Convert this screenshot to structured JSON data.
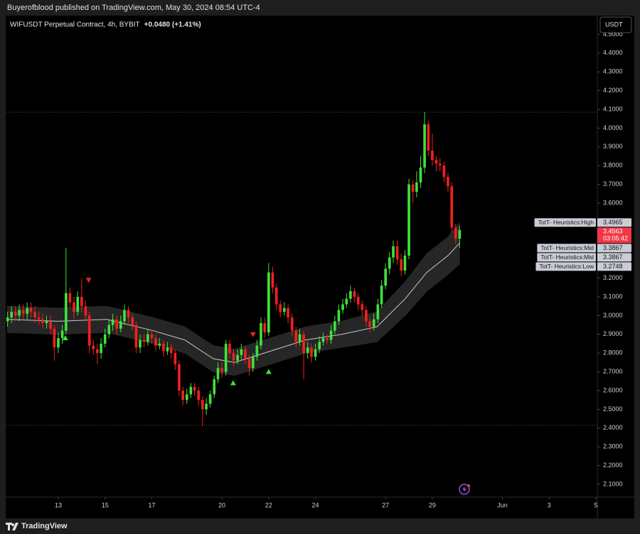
{
  "chart_data": {
    "type": "candlestick",
    "subtitle": "Buyerofblood published on TradingView.com, May 30, 2024 08:54 UTC-4",
    "title": "WIFUSDT Perpetual Contract, 4h, BYBIT",
    "change_label": "+0.0480 (+1.41%)",
    "currency": "USDT",
    "countdown": "03:05:42",
    "brand": "TradingView",
    "up_color": "#3fe23a",
    "down_color": "#f21f1f",
    "grid": false,
    "xlim": [
      10.75,
      36.06
    ],
    "ylim": [
      2.032,
      4.6
    ],
    "xticks": [
      13,
      15,
      17,
      20,
      22,
      24,
      27,
      29,
      {
        "value": 32,
        "label": "Jun"
      },
      {
        "value": 34,
        "label": "3"
      },
      {
        "value": 36,
        "label": "5"
      }
    ],
    "yticks": [
      {
        "value": 2.1,
        "label": "2.1000"
      },
      {
        "value": 2.2,
        "label": "2.2000"
      },
      {
        "value": 2.3,
        "label": "2.3000"
      },
      {
        "value": 2.4,
        "label": "2.4000"
      },
      {
        "value": 2.5,
        "label": "2.5000"
      },
      {
        "value": 2.6,
        "label": "2.6000"
      },
      {
        "value": 2.7,
        "label": "2.7000"
      },
      {
        "value": 2.8,
        "label": "2.8000"
      },
      {
        "value": 2.9,
        "label": "2.9000"
      },
      {
        "value": 3.0,
        "label": "3.0000"
      },
      {
        "value": 3.1,
        "label": "3.1000"
      },
      {
        "value": 3.2,
        "label": "3.2000"
      },
      {
        "value": 3.3,
        "label": "3.3000"
      },
      {
        "value": 3.4,
        "label": "3.4000"
      },
      {
        "value": 3.5,
        "label": "3.5000"
      },
      {
        "value": 3.6,
        "label": "3.6000"
      },
      {
        "value": 3.7,
        "label": "3.7000"
      },
      {
        "value": 3.8,
        "label": "3.8000"
      },
      {
        "value": 3.9,
        "label": "3.9000"
      },
      {
        "value": 4.0,
        "label": "4.0000"
      },
      {
        "value": 4.1,
        "label": "4.1000"
      },
      {
        "value": 4.2,
        "label": "4.2000"
      },
      {
        "value": 4.3,
        "label": "4.3000"
      },
      {
        "value": 4.4,
        "label": "4.4000"
      },
      {
        "value": 4.5,
        "label": "4.5000"
      }
    ],
    "x": [
      10.83,
      11,
      11.17,
      11.33,
      11.5,
      11.67,
      11.83,
      12,
      12.17,
      12.33,
      12.5,
      12.67,
      12.83,
      13,
      13.17,
      13.33,
      13.5,
      13.67,
      13.83,
      14,
      14.17,
      14.33,
      14.5,
      14.67,
      14.83,
      15,
      15.17,
      15.33,
      15.5,
      15.67,
      15.83,
      16,
      16.17,
      16.33,
      16.5,
      16.67,
      16.83,
      17,
      17.17,
      17.33,
      17.5,
      17.67,
      17.83,
      18,
      18.17,
      18.33,
      18.5,
      18.67,
      18.83,
      19,
      19.17,
      19.33,
      19.5,
      19.67,
      19.83,
      20,
      20.17,
      20.33,
      20.5,
      20.67,
      20.83,
      21,
      21.17,
      21.33,
      21.5,
      21.67,
      21.83,
      22,
      22.17,
      22.33,
      22.5,
      22.67,
      22.83,
      23,
      23.17,
      23.33,
      23.5,
      23.67,
      23.83,
      24,
      24.17,
      24.33,
      24.5,
      24.67,
      24.83,
      25,
      25.17,
      25.33,
      25.5,
      25.67,
      25.83,
      26,
      26.17,
      26.33,
      26.5,
      26.67,
      26.83,
      27,
      27.17,
      27.33,
      27.5,
      27.67,
      27.83,
      28,
      28.17,
      28.33,
      28.5,
      28.67,
      28.83,
      29,
      29.17,
      29.33,
      29.5,
      29.67,
      29.83,
      30,
      30.17
    ],
    "open": [
      2.97,
      2.99,
      3.02,
      3.0,
      3.03,
      3.01,
      3.04,
      3.02,
      2.99,
      2.98,
      2.96,
      2.97,
      2.93,
      2.83,
      2.88,
      2.92,
      3.12,
      3.07,
      3.02,
      3.1,
      3.05,
      3.0,
      2.84,
      2.82,
      2.8,
      2.85,
      2.9,
      2.95,
      2.98,
      2.93,
      2.97,
      3.03,
      2.99,
      2.95,
      2.83,
      2.87,
      2.86,
      2.9,
      2.88,
      2.84,
      2.85,
      2.81,
      2.83,
      2.8,
      2.74,
      2.6,
      2.55,
      2.58,
      2.62,
      2.6,
      2.55,
      2.5,
      2.53,
      2.58,
      2.66,
      2.72,
      2.7,
      2.85,
      2.8,
      2.76,
      2.79,
      2.82,
      2.77,
      2.72,
      2.78,
      2.84,
      2.96,
      2.91,
      3.23,
      3.15,
      3.06,
      3.02,
      3.04,
      2.99,
      2.92,
      2.86,
      2.9,
      2.8,
      2.83,
      2.78,
      2.82,
      2.86,
      2.88,
      2.87,
      2.92,
      2.97,
      3.03,
      3.06,
      3.09,
      3.13,
      3.1,
      3.06,
      3.03,
      2.97,
      2.94,
      2.98,
      3.06,
      3.16,
      3.25,
      3.31,
      3.37,
      3.3,
      3.24,
      3.32,
      3.7,
      3.66,
      3.71,
      3.79,
      4.02,
      3.88,
      3.83,
      3.81,
      3.8,
      3.74,
      3.69,
      3.47,
      3.41
    ],
    "high": [
      3.02,
      3.05,
      3.05,
      3.06,
      3.06,
      3.07,
      3.07,
      3.05,
      3.02,
      3.01,
      3.0,
      3.0,
      2.95,
      2.91,
      2.95,
      3.36,
      3.15,
      3.1,
      3.13,
      3.2,
      3.08,
      3.02,
      2.87,
      2.85,
      2.88,
      2.93,
      2.98,
      3.01,
      3.0,
      3.0,
      3.06,
      3.05,
      3.01,
      2.97,
      2.9,
      2.9,
      2.93,
      2.92,
      2.9,
      2.88,
      2.87,
      2.86,
      2.85,
      2.82,
      2.76,
      2.62,
      2.61,
      2.64,
      2.64,
      2.62,
      2.57,
      2.56,
      2.6,
      2.68,
      2.75,
      2.75,
      2.87,
      2.87,
      2.82,
      2.82,
      2.85,
      2.84,
      2.79,
      2.8,
      2.87,
      2.99,
      2.99,
      3.28,
      3.26,
      3.17,
      3.08,
      3.07,
      3.06,
      3.01,
      2.94,
      2.93,
      2.92,
      2.86,
      2.85,
      2.85,
      2.89,
      2.91,
      2.9,
      2.95,
      3.0,
      3.06,
      3.09,
      3.12,
      3.16,
      3.15,
      3.12,
      3.08,
      3.05,
      2.99,
      3.01,
      3.09,
      3.19,
      3.28,
      3.34,
      3.4,
      3.4,
      3.33,
      3.35,
      3.73,
      3.72,
      3.77,
      3.85,
      4.085,
      4.04,
      3.97,
      3.85,
      3.84,
      3.82,
      3.76,
      3.71,
      3.49,
      3.48
    ],
    "low": [
      2.94,
      2.96,
      2.97,
      2.97,
      2.98,
      2.98,
      2.99,
      2.96,
      2.95,
      2.93,
      2.93,
      2.9,
      2.76,
      2.8,
      2.85,
      2.9,
      3.04,
      2.98,
      3.0,
      3.02,
      2.97,
      2.8,
      2.79,
      2.74,
      2.77,
      2.83,
      2.88,
      2.92,
      2.9,
      2.91,
      2.95,
      2.96,
      2.92,
      2.8,
      2.8,
      2.83,
      2.84,
      2.85,
      2.81,
      2.82,
      2.78,
      2.79,
      2.77,
      2.71,
      2.57,
      2.52,
      2.53,
      2.56,
      2.57,
      2.52,
      2.41,
      2.47,
      2.51,
      2.56,
      2.64,
      2.67,
      2.68,
      2.77,
      2.73,
      2.74,
      2.76,
      2.74,
      2.68,
      2.7,
      2.76,
      2.82,
      2.88,
      2.89,
      3.12,
      3.03,
      2.99,
      3.0,
      2.96,
      2.89,
      2.83,
      2.84,
      2.66,
      2.77,
      2.75,
      2.76,
      2.8,
      2.84,
      2.85,
      2.85,
      2.9,
      2.95,
      3.01,
      3.04,
      3.07,
      3.07,
      3.03,
      3.0,
      2.94,
      2.91,
      2.92,
      2.96,
      3.04,
      3.14,
      3.22,
      3.28,
      3.27,
      3.21,
      3.22,
      3.3,
      3.6,
      3.63,
      3.68,
      3.76,
      3.85,
      3.8,
      3.77,
      3.77,
      3.71,
      3.66,
      3.44,
      3.38,
      3.36
    ],
    "close": [
      2.99,
      3.02,
      3.0,
      3.03,
      3.01,
      3.04,
      3.02,
      2.99,
      2.98,
      2.96,
      2.97,
      2.93,
      2.83,
      2.88,
      2.92,
      3.12,
      3.07,
      3.02,
      3.1,
      3.05,
      3.0,
      2.84,
      2.82,
      2.8,
      2.85,
      2.9,
      2.95,
      2.98,
      2.93,
      2.97,
      3.03,
      2.99,
      2.95,
      2.83,
      2.87,
      2.86,
      2.9,
      2.88,
      2.84,
      2.85,
      2.81,
      2.83,
      2.8,
      2.74,
      2.6,
      2.55,
      2.58,
      2.62,
      2.6,
      2.55,
      2.5,
      2.53,
      2.58,
      2.66,
      2.72,
      2.7,
      2.85,
      2.8,
      2.76,
      2.79,
      2.82,
      2.77,
      2.72,
      2.78,
      2.84,
      2.96,
      2.91,
      3.23,
      3.15,
      3.06,
      3.02,
      3.04,
      2.99,
      2.92,
      2.86,
      2.9,
      2.8,
      2.83,
      2.78,
      2.82,
      2.86,
      2.88,
      2.87,
      2.92,
      2.97,
      3.03,
      3.06,
      3.09,
      3.13,
      3.1,
      3.06,
      3.03,
      2.97,
      2.94,
      2.98,
      3.06,
      3.16,
      3.25,
      3.31,
      3.37,
      3.3,
      3.24,
      3.32,
      3.7,
      3.66,
      3.71,
      3.79,
      4.02,
      3.88,
      3.83,
      3.81,
      3.8,
      3.74,
      3.69,
      3.47,
      3.41,
      3.4563
    ],
    "band": {
      "x": [
        10.81,
        13,
        15.07,
        17.05,
        18.41,
        19.63,
        20.54,
        22.06,
        23.59,
        25.11,
        26.63,
        27.84,
        28.76,
        29.67,
        30.17
      ],
      "mid": [
        2.98,
        2.97,
        2.98,
        2.92,
        2.87,
        2.77,
        2.75,
        2.81,
        2.87,
        2.9,
        2.94,
        3.09,
        3.23,
        3.32,
        3.3867
      ],
      "upper": [
        3.05,
        3.04,
        3.05,
        2.99,
        2.94,
        2.84,
        2.82,
        2.88,
        2.94,
        2.97,
        3.02,
        3.18,
        3.33,
        3.42,
        3.4965
      ],
      "lower": [
        2.91,
        2.9,
        2.91,
        2.85,
        2.8,
        2.7,
        2.68,
        2.74,
        2.8,
        2.83,
        2.86,
        3.0,
        3.13,
        3.22,
        3.2748
      ],
      "fill": "#262626",
      "line_color": "#c8c8c8"
    },
    "buy_signals": {
      "x": [
        13.3,
        20.48,
        22.0
      ],
      "values": [
        2.88,
        2.64,
        2.7
      ],
      "color": "#3fe23a"
    },
    "sell_signals": {
      "x": [
        14.3,
        21.33
      ],
      "values": [
        3.19,
        2.9
      ],
      "color": "#f21f1f"
    },
    "price_lines": [
      4.085,
      2.415
    ],
    "indicator_labels": [
      {
        "name": "TotT- Heuristics:High",
        "value": 3.4965
      },
      {
        "name": "TotT- Heuristics:Mid",
        "value": 3.3867
      },
      {
        "name": "TotT- Heuristics:Mid",
        "value": 3.3867
      },
      {
        "name": "TotT- Heuristics:Low",
        "value": 3.2748
      }
    ]
  }
}
